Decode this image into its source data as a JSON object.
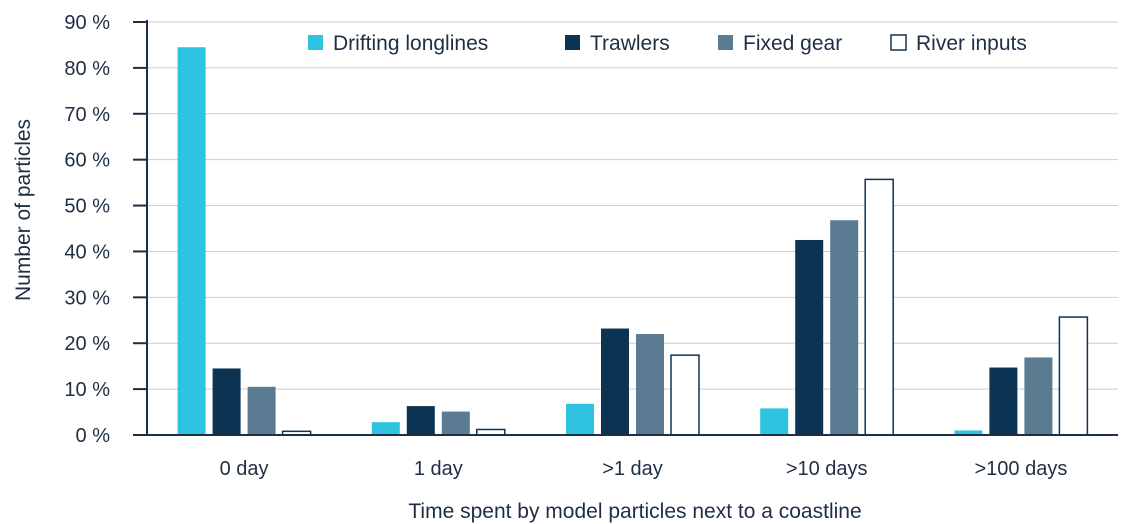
{
  "chart_data": {
    "type": "bar",
    "title": "",
    "xlabel": "Time spent by model particles next to a coastline",
    "ylabel": "Number of particles",
    "ylim": [
      0,
      90
    ],
    "yticks": [
      0,
      10,
      20,
      30,
      40,
      50,
      60,
      70,
      80,
      90
    ],
    "ytick_labels": [
      "0 %",
      "10 %",
      "20 %",
      "30 %",
      "40 %",
      "50 %",
      "60 %",
      "70 %",
      "80 %",
      "90 %"
    ],
    "categories": [
      "0 day",
      "1 day",
      ">1 day",
      ">10 days",
      ">100 days"
    ],
    "grid": true,
    "legend_position": "top",
    "series": [
      {
        "name": "Drifting longlines",
        "color": "#2ec4e0",
        "values": [
          84.5,
          2.8,
          6.8,
          5.8,
          1.0
        ]
      },
      {
        "name": "Trawlers",
        "color": "#0d3352",
        "values": [
          14.5,
          6.3,
          23.2,
          42.5,
          14.7
        ]
      },
      {
        "name": "Fixed gear",
        "color": "#5b7b92",
        "values": [
          10.5,
          5.1,
          22.0,
          46.8,
          16.9
        ]
      },
      {
        "name": "River inputs",
        "color": "#ffffff",
        "values": [
          0.8,
          1.2,
          17.4,
          55.7,
          25.7
        ]
      }
    ]
  }
}
